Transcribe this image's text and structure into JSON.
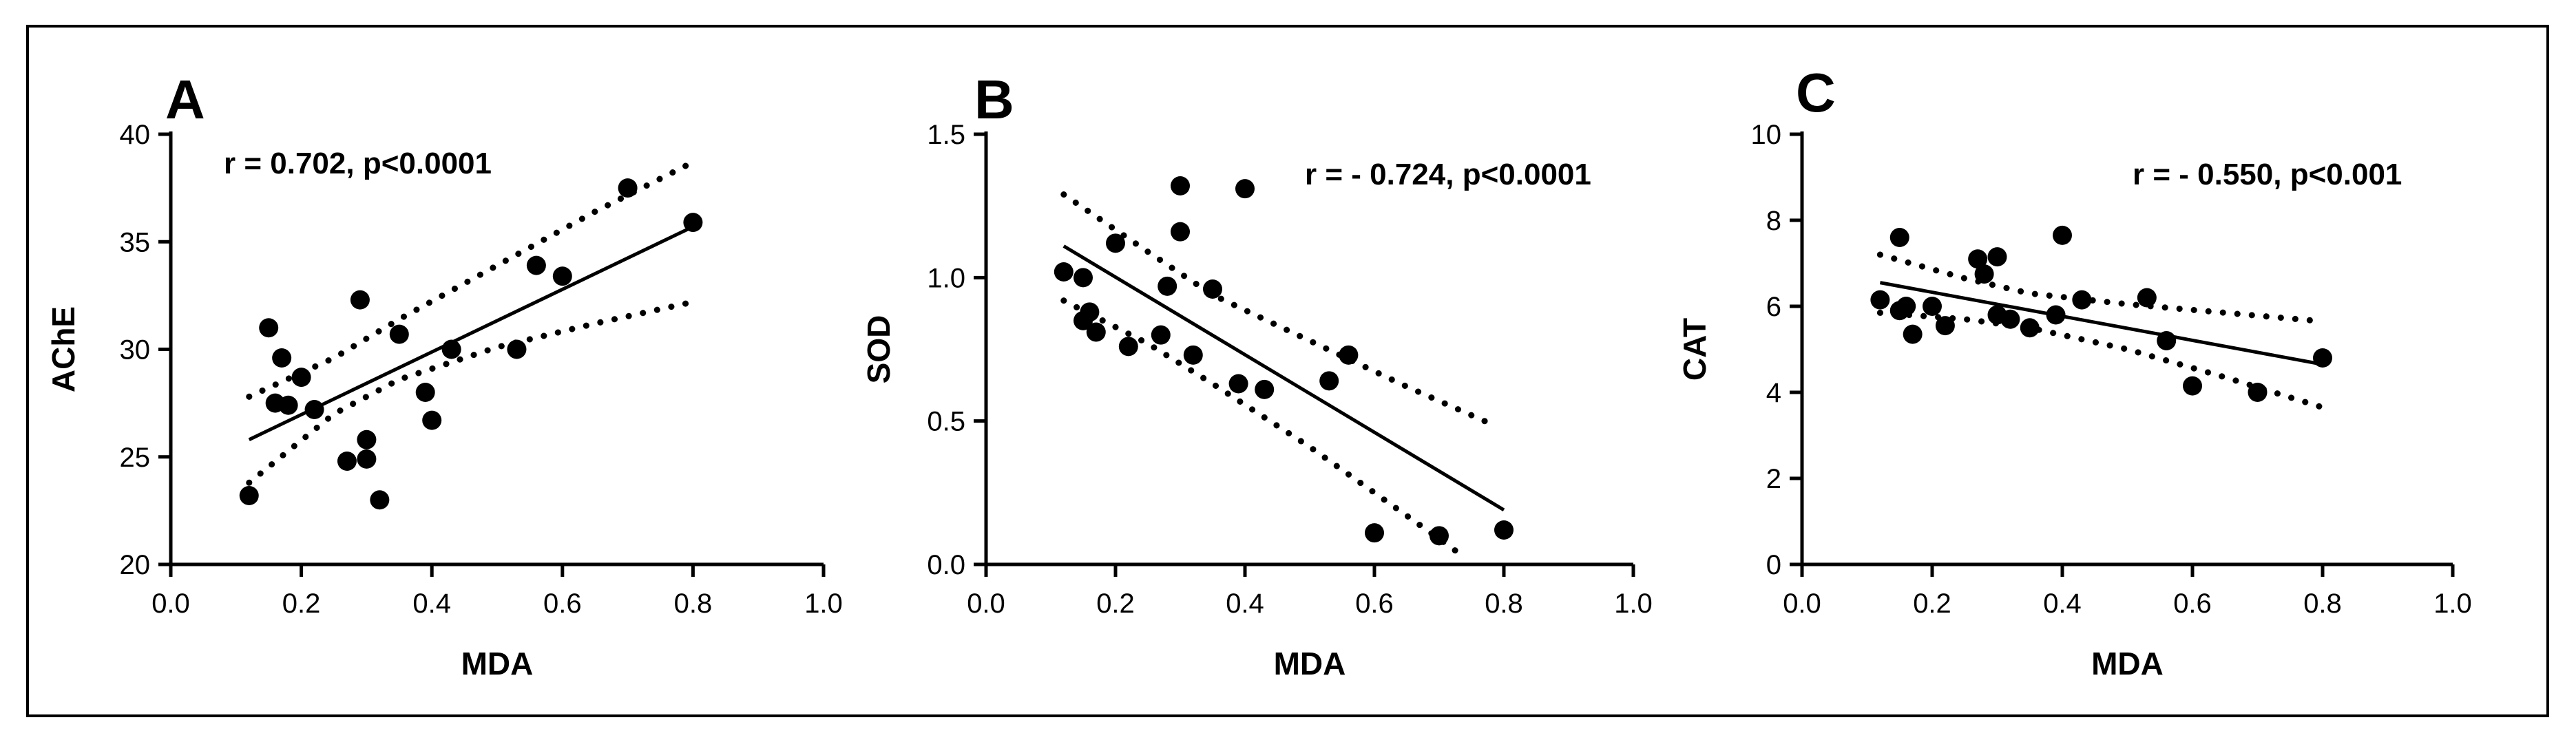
{
  "colors": {
    "ink": "#000000",
    "background": "#ffffff"
  },
  "chart_data": [
    {
      "type": "scatter",
      "panel": "A",
      "annotation": "r = 0.702, p<0.0001",
      "xlabel": "MDA",
      "ylabel": "AChE",
      "xlim": [
        0,
        1.0
      ],
      "ylim": [
        20,
        40
      ],
      "xticks": [
        0,
        0.2,
        0.4,
        0.6,
        0.8,
        1.0
      ],
      "xtick_labels": [
        "0.0",
        "0.2",
        "0.4",
        "0.6",
        "0.8",
        "1.0"
      ],
      "yticks": [
        20,
        25,
        30,
        35,
        40
      ],
      "ytick_labels": [
        "20",
        "25",
        "30",
        "35",
        "40"
      ],
      "points": [
        [
          0.12,
          23.2
        ],
        [
          0.15,
          31.0
        ],
        [
          0.16,
          27.5
        ],
        [
          0.17,
          29.6
        ],
        [
          0.18,
          27.4
        ],
        [
          0.2,
          28.7
        ],
        [
          0.22,
          27.2
        ],
        [
          0.27,
          24.8
        ],
        [
          0.29,
          32.3
        ],
        [
          0.3,
          25.8
        ],
        [
          0.3,
          24.9
        ],
        [
          0.32,
          23.0
        ],
        [
          0.35,
          30.7
        ],
        [
          0.39,
          28.0
        ],
        [
          0.4,
          26.7
        ],
        [
          0.43,
          30.0
        ],
        [
          0.53,
          30.0
        ],
        [
          0.56,
          33.9
        ],
        [
          0.6,
          33.4
        ],
        [
          0.7,
          37.5
        ],
        [
          0.8,
          35.9
        ]
      ],
      "fit_line": [
        [
          0.12,
          25.8
        ],
        [
          0.8,
          35.7
        ]
      ],
      "ci_upper": [
        [
          0.12,
          27.8
        ],
        [
          0.25,
          29.6
        ],
        [
          0.35,
          31.4
        ],
        [
          0.5,
          33.9
        ],
        [
          0.65,
          36.4
        ],
        [
          0.8,
          38.7
        ]
      ],
      "ci_lower": [
        [
          0.12,
          23.8
        ],
        [
          0.25,
          27.0
        ],
        [
          0.35,
          28.6
        ],
        [
          0.5,
          30.1
        ],
        [
          0.65,
          31.2
        ],
        [
          0.8,
          32.2
        ]
      ]
    },
    {
      "type": "scatter",
      "panel": "B",
      "annotation": "r = - 0.724, p<0.0001",
      "xlabel": "MDA",
      "ylabel": "SOD",
      "xlim": [
        0,
        1.0
      ],
      "ylim": [
        0,
        1.5
      ],
      "xticks": [
        0,
        0.2,
        0.4,
        0.6,
        0.8,
        1.0
      ],
      "xtick_labels": [
        "0.0",
        "0.2",
        "0.4",
        "0.6",
        "0.8",
        "1.0"
      ],
      "yticks": [
        0,
        0.5,
        1.0,
        1.5
      ],
      "ytick_labels": [
        "0.0",
        "0.5",
        "1.0",
        "1.5"
      ],
      "points": [
        [
          0.12,
          1.02
        ],
        [
          0.15,
          1.0
        ],
        [
          0.15,
          0.85
        ],
        [
          0.16,
          0.88
        ],
        [
          0.17,
          0.81
        ],
        [
          0.2,
          1.12
        ],
        [
          0.22,
          0.76
        ],
        [
          0.27,
          0.8
        ],
        [
          0.28,
          0.97
        ],
        [
          0.3,
          1.32
        ],
        [
          0.3,
          1.16
        ],
        [
          0.32,
          0.73
        ],
        [
          0.35,
          0.96
        ],
        [
          0.39,
          0.63
        ],
        [
          0.4,
          1.31
        ],
        [
          0.43,
          0.61
        ],
        [
          0.53,
          0.64
        ],
        [
          0.56,
          0.73
        ],
        [
          0.6,
          0.11
        ],
        [
          0.7,
          0.1
        ],
        [
          0.8,
          0.12
        ]
      ],
      "fit_line": [
        [
          0.12,
          1.11
        ],
        [
          0.8,
          0.19
        ]
      ],
      "ci_upper": [
        [
          0.12,
          1.29
        ],
        [
          0.25,
          1.09
        ],
        [
          0.35,
          0.94
        ],
        [
          0.5,
          0.78
        ],
        [
          0.65,
          0.62
        ],
        [
          0.78,
          0.49
        ]
      ],
      "ci_lower": [
        [
          0.12,
          0.92
        ],
        [
          0.25,
          0.77
        ],
        [
          0.35,
          0.63
        ],
        [
          0.5,
          0.41
        ],
        [
          0.65,
          0.17
        ],
        [
          0.73,
          0.04
        ]
      ]
    },
    {
      "type": "scatter",
      "panel": "C",
      "annotation": "r = - 0.550, p<0.001",
      "xlabel": "MDA",
      "ylabel": "CAT",
      "xlim": [
        0,
        1.0
      ],
      "ylim": [
        0,
        10
      ],
      "xticks": [
        0,
        0.2,
        0.4,
        0.6,
        0.8,
        1.0
      ],
      "xtick_labels": [
        "0.0",
        "0.2",
        "0.4",
        "0.6",
        "0.8",
        "1.0"
      ],
      "yticks": [
        0,
        2,
        4,
        6,
        8,
        10
      ],
      "ytick_labels": [
        "0",
        "2",
        "4",
        "6",
        "8",
        "10"
      ],
      "points": [
        [
          0.12,
          6.15
        ],
        [
          0.15,
          7.6
        ],
        [
          0.15,
          5.9
        ],
        [
          0.16,
          6.0
        ],
        [
          0.17,
          5.35
        ],
        [
          0.2,
          6.0
        ],
        [
          0.22,
          5.55
        ],
        [
          0.27,
          7.1
        ],
        [
          0.28,
          6.75
        ],
        [
          0.3,
          7.15
        ],
        [
          0.3,
          5.8
        ],
        [
          0.32,
          5.7
        ],
        [
          0.35,
          5.5
        ],
        [
          0.39,
          5.8
        ],
        [
          0.4,
          7.65
        ],
        [
          0.43,
          6.15
        ],
        [
          0.53,
          6.2
        ],
        [
          0.56,
          5.2
        ],
        [
          0.6,
          4.15
        ],
        [
          0.7,
          4.0
        ],
        [
          0.8,
          4.8
        ]
      ],
      "fit_line": [
        [
          0.12,
          6.55
        ],
        [
          0.8,
          4.65
        ]
      ],
      "ci_upper": [
        [
          0.12,
          7.2
        ],
        [
          0.25,
          6.65
        ],
        [
          0.35,
          6.3
        ],
        [
          0.5,
          6.05
        ],
        [
          0.65,
          5.85
        ],
        [
          0.8,
          5.65
        ]
      ],
      "ci_lower": [
        [
          0.12,
          5.85
        ],
        [
          0.25,
          5.7
        ],
        [
          0.35,
          5.5
        ],
        [
          0.5,
          5.0
        ],
        [
          0.65,
          4.35
        ],
        [
          0.8,
          3.65
        ]
      ]
    }
  ]
}
